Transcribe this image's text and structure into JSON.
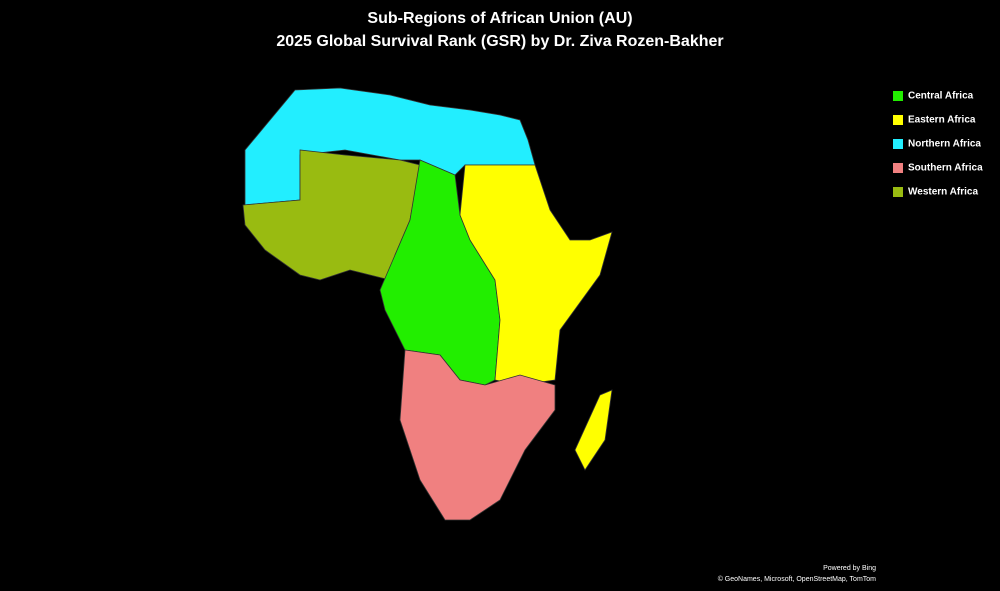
{
  "title": [
    "Sub-Regions of  African Union (AU)",
    "2025 Global Survival Rank (GSR) by Dr. Ziva Rozen-Bakher"
  ],
  "legend": [
    {
      "name": "Central Africa",
      "color": "#22ee00"
    },
    {
      "name": "Eastern Africa",
      "color": "#ffff00"
    },
    {
      "name": "Northern Africa",
      "color": "#22eeff"
    },
    {
      "name": "Southern Africa",
      "color": "#f08080"
    },
    {
      "name": "Western Africa",
      "color": "#99bb11"
    }
  ],
  "attribution": [
    "Powered by Bing",
    "© GeoNames, Microsoft, OpenStreetMap, TomTom"
  ]
}
